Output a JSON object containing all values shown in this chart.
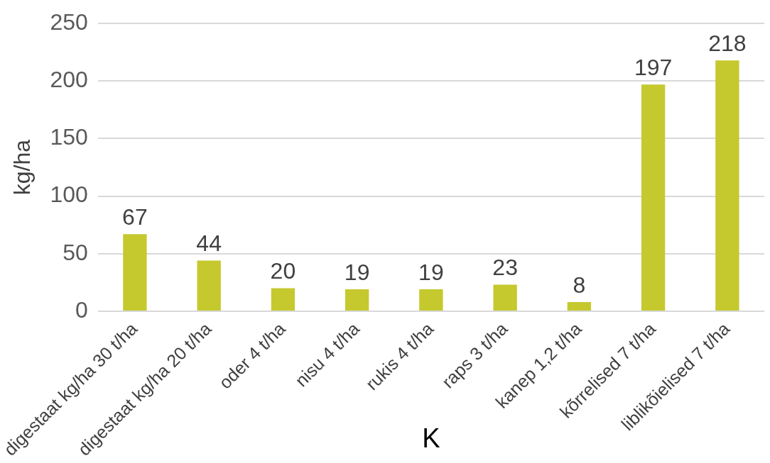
{
  "chart_data": {
    "type": "bar",
    "xlabel": "K",
    "ylabel": "kg/ha",
    "categories": [
      "digestaat kg/ha 30 t/ha",
      "digestaat kg/ha 20 t/ha",
      "oder 4 t/ha",
      "nisu 4 t/ha",
      "rukis 4 t/ha",
      "raps 3 t/ha",
      "kanep 1,2 t/ha",
      "kõrrelised 7 t/ha",
      "liblikõielised 7 t/ha"
    ],
    "values": [
      67,
      44,
      20,
      19,
      19,
      23,
      8,
      197,
      218
    ],
    "color": "#c5c92e",
    "ylim": [
      0,
      250
    ],
    "yticks": [
      0,
      50,
      100,
      150,
      200,
      250
    ],
    "grid": "y",
    "legend": false,
    "data_labels": true
  }
}
